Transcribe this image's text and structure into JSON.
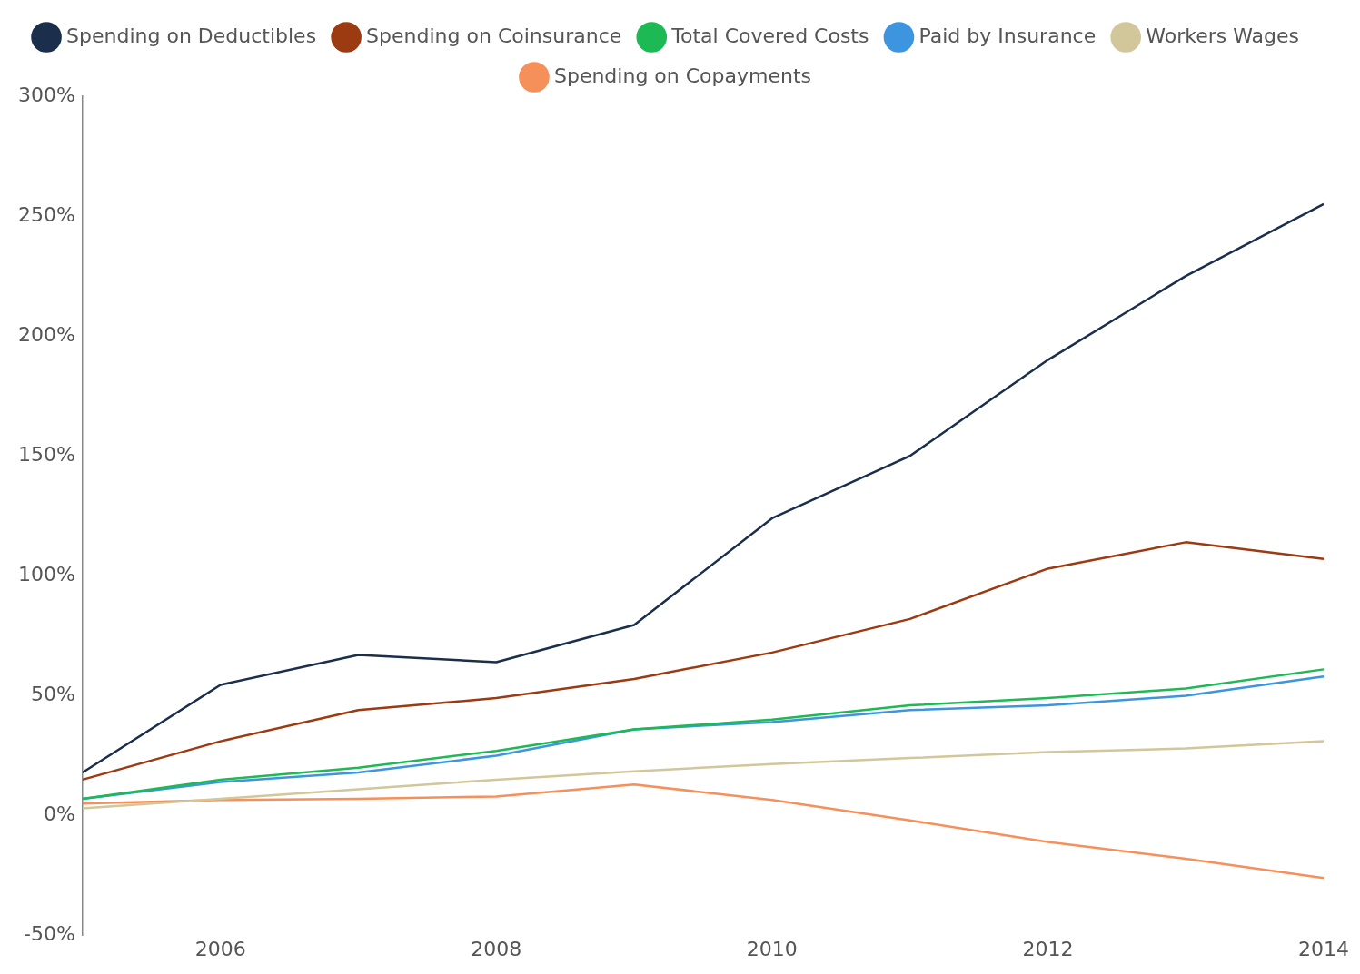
{
  "chart_data": {
    "type": "line",
    "x": [
      2005,
      2006,
      2007,
      2008,
      2009,
      2010,
      2011,
      2012,
      2013,
      2014
    ],
    "series": [
      {
        "name": "Spending on Deductibles",
        "color": "#1b2f4d",
        "values": [
          18,
          54.5,
          67,
          64,
          79.5,
          124,
          150,
          190,
          225,
          255
        ]
      },
      {
        "name": "Spending on Coinsurance",
        "color": "#9c3a12",
        "values": [
          15,
          31,
          44,
          49,
          57,
          68,
          82,
          103,
          114,
          107
        ]
      },
      {
        "name": "Total Covered Costs",
        "color": "#1db954",
        "values": [
          7,
          15,
          20,
          27,
          36,
          40,
          46,
          49,
          53,
          61
        ]
      },
      {
        "name": "Paid by Insurance",
        "color": "#3d95e0",
        "values": [
          7,
          14,
          18,
          25,
          36,
          39,
          44,
          46,
          50,
          58
        ]
      },
      {
        "name": "Workers Wages",
        "color": "#d2c79a",
        "values": [
          3,
          7,
          11,
          15,
          18.5,
          21.5,
          24,
          26.5,
          28,
          31
        ]
      },
      {
        "name": "Spending on Copayments",
        "color": "#f5905a",
        "values": [
          5,
          6.5,
          7,
          8,
          13,
          6.5,
          -2,
          -11,
          -18,
          -26
        ]
      }
    ],
    "xlim": [
      2005,
      2014
    ],
    "xticks": [
      2006,
      2008,
      2010,
      2012,
      2014
    ],
    "ylim": [
      -50,
      300
    ],
    "yticks": [
      {
        "value": -50,
        "label": "-50%"
      },
      {
        "value": 0,
        "label": "0%"
      },
      {
        "value": 50,
        "label": "50%"
      },
      {
        "value": 100,
        "label": "100%"
      },
      {
        "value": 150,
        "label": "150%"
      },
      {
        "value": 200,
        "label": "200%"
      },
      {
        "value": 250,
        "label": "250%"
      },
      {
        "value": 300,
        "label": "300%"
      }
    ],
    "grid": false,
    "legend": "top",
    "marker": "none",
    "line_style": "solid"
  }
}
